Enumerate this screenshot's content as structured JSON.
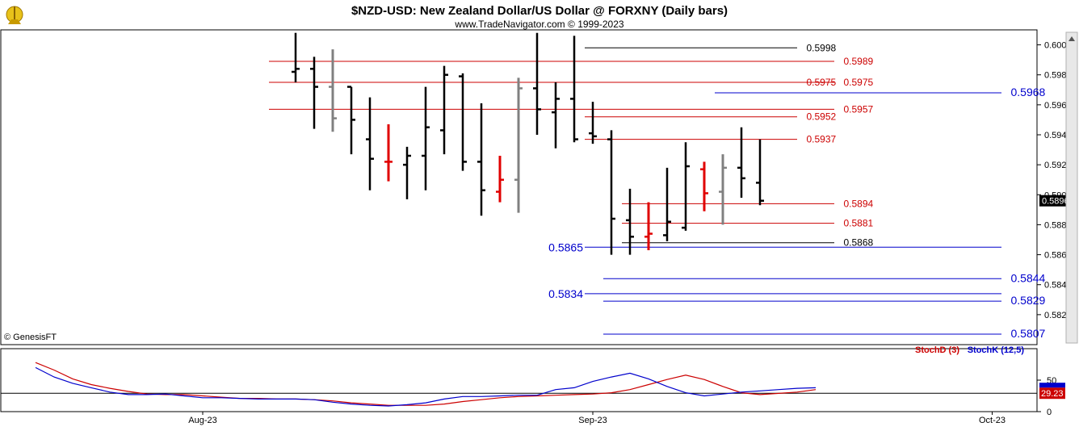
{
  "header": {
    "title": "$NZD-USD:  New Zealand Dollar/US Dollar @ FORXNY  (Daily bars)",
    "subtitle": "www.TradeNavigator.com © 1999-2023"
  },
  "footer": {
    "copyright": "© GenesisFT"
  },
  "colors": {
    "up_bar": "#000000",
    "neutral_bar": "#808080",
    "red_bar": "#e00000",
    "red_line": "#cc0000",
    "blue_line": "#0000cc",
    "stoch_d": "#cc0000",
    "stoch_k": "#0000cc",
    "axis": "#000000",
    "last_price_bg": "#000000",
    "stoch_last_bg": "#cc0000"
  },
  "chart_data": [
    {
      "type": "ohlc",
      "title": "$NZD-USD:  New Zealand Dollar/US Dollar @ FORXNY  (Daily bars)",
      "ylim": [
        0.58,
        0.601
      ],
      "y_ticks": [
        "0.6000",
        "0.5980",
        "0.5960",
        "0.5940",
        "0.5920",
        "0.5900",
        "0.5880",
        "0.5860",
        "0.5840",
        "0.5820"
      ],
      "x_labels": [
        {
          "label": "Aug-23",
          "bar": -5
        },
        {
          "label": "Sep-23",
          "bar": 16
        },
        {
          "label": "Oct-23",
          "bar": 37.5
        }
      ],
      "last_price": "0.5896",
      "bars": [
        {
          "o": 0.5982,
          "h": 0.6008,
          "l": 0.5975,
          "c": 0.5984,
          "color": "black"
        },
        {
          "o": 0.5984,
          "h": 0.5992,
          "l": 0.5944,
          "c": 0.5972,
          "color": "black"
        },
        {
          "o": 0.5972,
          "h": 0.5997,
          "l": 0.5942,
          "c": 0.5951,
          "color": "gray"
        },
        {
          "o": 0.5972,
          "h": 0.5972,
          "l": 0.5927,
          "c": 0.595,
          "color": "black"
        },
        {
          "o": 0.5937,
          "h": 0.5965,
          "l": 0.5903,
          "c": 0.5924,
          "color": "black"
        },
        {
          "o": 0.5922,
          "h": 0.5947,
          "l": 0.5909,
          "c": 0.5922,
          "color": "red"
        },
        {
          "o": 0.592,
          "h": 0.5932,
          "l": 0.5897,
          "c": 0.5926,
          "color": "black"
        },
        {
          "o": 0.5926,
          "h": 0.5972,
          "l": 0.5903,
          "c": 0.5945,
          "color": "black"
        },
        {
          "o": 0.5943,
          "h": 0.5986,
          "l": 0.5927,
          "c": 0.598,
          "color": "black"
        },
        {
          "o": 0.5979,
          "h": 0.5981,
          "l": 0.5916,
          "c": 0.5922,
          "color": "black"
        },
        {
          "o": 0.5922,
          "h": 0.5961,
          "l": 0.5886,
          "c": 0.5903,
          "color": "black"
        },
        {
          "o": 0.5902,
          "h": 0.5926,
          "l": 0.5895,
          "c": 0.591,
          "color": "red"
        },
        {
          "o": 0.591,
          "h": 0.5978,
          "l": 0.5888,
          "c": 0.5971,
          "color": "gray"
        },
        {
          "o": 0.5971,
          "h": 0.6008,
          "l": 0.594,
          "c": 0.5957,
          "color": "black"
        },
        {
          "o": 0.5955,
          "h": 0.5975,
          "l": 0.5931,
          "c": 0.5964,
          "color": "black"
        },
        {
          "o": 0.5964,
          "h": 0.6006,
          "l": 0.5935,
          "c": 0.5937,
          "color": "black"
        },
        {
          "o": 0.5941,
          "h": 0.5962,
          "l": 0.5934,
          "c": 0.5939,
          "color": "black"
        },
        {
          "o": 0.5937,
          "h": 0.5943,
          "l": 0.586,
          "c": 0.5884,
          "color": "black"
        },
        {
          "o": 0.5883,
          "h": 0.5904,
          "l": 0.586,
          "c": 0.5872,
          "color": "black"
        },
        {
          "o": 0.5872,
          "h": 0.5895,
          "l": 0.5863,
          "c": 0.5874,
          "color": "red"
        },
        {
          "o": 0.5873,
          "h": 0.5918,
          "l": 0.5869,
          "c": 0.5882,
          "color": "black"
        },
        {
          "o": 0.5878,
          "h": 0.5935,
          "l": 0.5876,
          "c": 0.5919,
          "color": "black"
        },
        {
          "o": 0.5917,
          "h": 0.5922,
          "l": 0.5889,
          "c": 0.5901,
          "color": "red"
        },
        {
          "o": 0.5902,
          "h": 0.5927,
          "l": 0.588,
          "c": 0.5918,
          "color": "gray"
        },
        {
          "o": 0.5918,
          "h": 0.5945,
          "l": 0.5898,
          "c": 0.5911,
          "color": "black"
        },
        {
          "o": 0.5908,
          "h": 0.5937,
          "l": 0.5893,
          "c": 0.5896,
          "color": "black"
        }
      ],
      "levels": [
        {
          "value": 0.5998,
          "label": "0.5998",
          "color": "black",
          "from_bar": 16,
          "to_bar": 27,
          "label_side": "right",
          "label_bar": 27.5
        },
        {
          "value": 0.5989,
          "label": "0.5989",
          "color": "red",
          "from_bar": -1,
          "to_bar": 29,
          "label_side": "right",
          "label_bar": 29.5
        },
        {
          "value": 0.5975,
          "label": "0.5975",
          "color": "red",
          "from_bar": -1,
          "to_bar": 29,
          "label_side": "right",
          "label_bar": 29.5
        },
        {
          "value": 0.5975,
          "label": "0.5975",
          "color": "red",
          "from_bar": 16,
          "to_bar": 27,
          "label_side": "right",
          "label_bar": 27.5
        },
        {
          "value": 0.5968,
          "label": "0.5968",
          "color": "blue",
          "from_bar": 23,
          "to_bar": 38,
          "label_side": "right",
          "label_bar": 38.5,
          "big": true
        },
        {
          "value": 0.5957,
          "label": "0.5957",
          "color": "red",
          "from_bar": -1,
          "to_bar": 29,
          "label_side": "right",
          "label_bar": 29.5
        },
        {
          "value": 0.5952,
          "label": "0.5952",
          "color": "red",
          "from_bar": 16,
          "to_bar": 27,
          "label_side": "right",
          "label_bar": 27.5
        },
        {
          "value": 0.5937,
          "label": "0.5937",
          "color": "red",
          "from_bar": 16,
          "to_bar": 27,
          "label_side": "right",
          "label_bar": 27.5
        },
        {
          "value": 0.5894,
          "label": "0.5894",
          "color": "red",
          "from_bar": 18,
          "to_bar": 29,
          "label_side": "right",
          "label_bar": 29.5
        },
        {
          "value": 0.5881,
          "label": "0.5881",
          "color": "red",
          "from_bar": 18,
          "to_bar": 29,
          "label_side": "right",
          "label_bar": 29.5
        },
        {
          "value": 0.5868,
          "label": "0.5868",
          "color": "black",
          "from_bar": 18,
          "to_bar": 29,
          "label_side": "right",
          "label_bar": 29.5
        },
        {
          "value": 0.5865,
          "label": "0.5865",
          "color": "blue",
          "from_bar": 16,
          "to_bar": 38,
          "label_side": "left",
          "label_bar": 16,
          "big": true
        },
        {
          "value": 0.5844,
          "label": "0.5844",
          "color": "blue",
          "from_bar": 17,
          "to_bar": 38,
          "label_side": "right",
          "label_bar": 38.5,
          "big": true
        },
        {
          "value": 0.5834,
          "label": "0.5834",
          "color": "blue",
          "from_bar": 16,
          "to_bar": 38,
          "label_side": "left",
          "label_bar": 16,
          "big": true
        },
        {
          "value": 0.5829,
          "label": "0.5829",
          "color": "blue",
          "from_bar": 17,
          "to_bar": 38,
          "label_side": "right",
          "label_bar": 38.5,
          "big": true
        },
        {
          "value": 0.5807,
          "label": "0.5807",
          "color": "blue",
          "from_bar": 17,
          "to_bar": 38,
          "label_side": "right",
          "label_bar": 38.5,
          "big": true
        }
      ]
    },
    {
      "type": "line",
      "ylim": [
        0,
        100
      ],
      "y_ticks": [
        "50",
        "0"
      ],
      "legend": [
        {
          "name": "StochD (3)",
          "color": "red"
        },
        {
          "name": "StochK (12,5)",
          "color": "blue"
        }
      ],
      "last_value": "29.23",
      "reference_line": 29.23,
      "series": [
        {
          "name": "StochD (3)",
          "color": "red",
          "start_bar": -14,
          "values": [
            78,
            66,
            52,
            43,
            37,
            32,
            28,
            27,
            27,
            25,
            23,
            21,
            21,
            20,
            20,
            19,
            17,
            14,
            12,
            10,
            10,
            10,
            12,
            16,
            19,
            22,
            24,
            25,
            26,
            27,
            28,
            30,
            35,
            43,
            51,
            58,
            51,
            40,
            30,
            27,
            29,
            31,
            35
          ]
        },
        {
          "name": "StochK (12,5)",
          "color": "blue",
          "start_bar": -14,
          "values": [
            70,
            55,
            45,
            38,
            31,
            27,
            27,
            28,
            25,
            22,
            22,
            21,
            20,
            20,
            20,
            19,
            15,
            12,
            10,
            9,
            11,
            14,
            20,
            24,
            24,
            25,
            26,
            26,
            35,
            38,
            48,
            55,
            61,
            52,
            40,
            30,
            25,
            28,
            31,
            33,
            35,
            37,
            38
          ]
        }
      ]
    }
  ]
}
